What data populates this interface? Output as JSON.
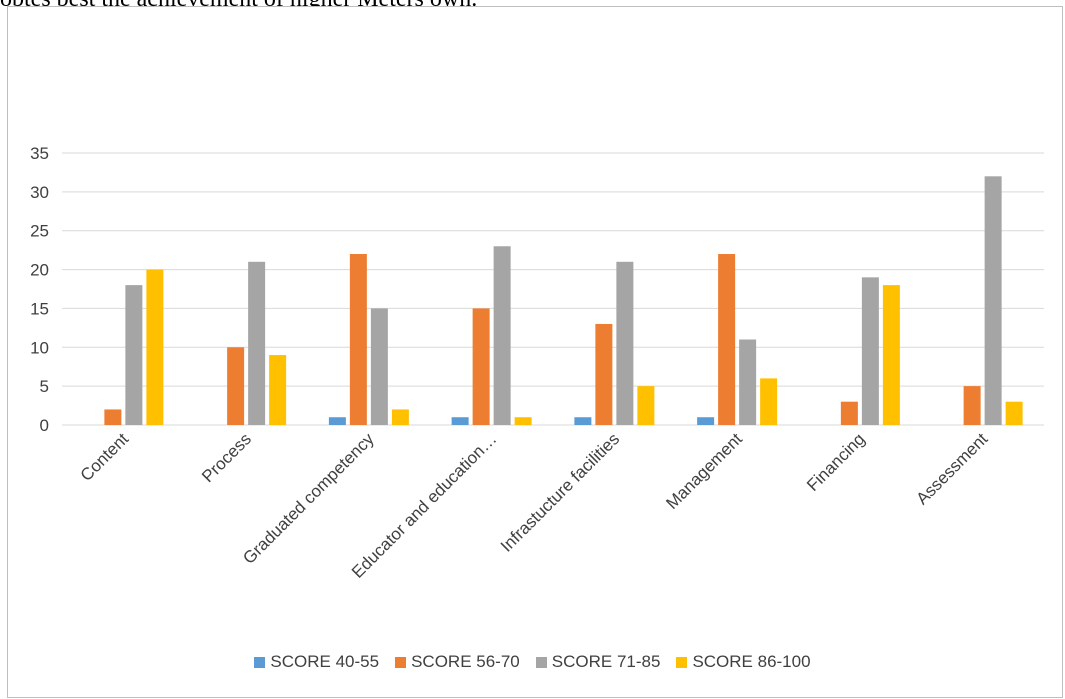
{
  "header_text": "obtes best the achievement of higher Meters own.",
  "chart_data": {
    "type": "bar",
    "title": "",
    "xlabel": "",
    "ylabel": "",
    "ylim": [
      0,
      35
    ],
    "yticks": [
      0,
      5,
      10,
      15,
      20,
      25,
      30,
      35
    ],
    "grid": true,
    "legend_position": "bottom",
    "categories": [
      "Content",
      "Process",
      "Graduated competency",
      "Educator and education…",
      "Infrastucture facilities",
      "Management",
      "Financing",
      "Assessment"
    ],
    "series": [
      {
        "name": "SCORE 40-55",
        "color": "#5b9bd5",
        "values": [
          0,
          0,
          1,
          1,
          1,
          1,
          0,
          0
        ]
      },
      {
        "name": "SCORE 56-70",
        "color": "#ed7d31",
        "values": [
          2,
          10,
          22,
          15,
          13,
          22,
          3,
          5
        ]
      },
      {
        "name": "SCORE 71-85",
        "color": "#a5a5a5",
        "values": [
          18,
          21,
          15,
          23,
          21,
          11,
          19,
          32
        ]
      },
      {
        "name": "SCORE 86-100",
        "color": "#ffc000",
        "values": [
          20,
          9,
          2,
          1,
          5,
          6,
          18,
          3
        ]
      }
    ]
  }
}
